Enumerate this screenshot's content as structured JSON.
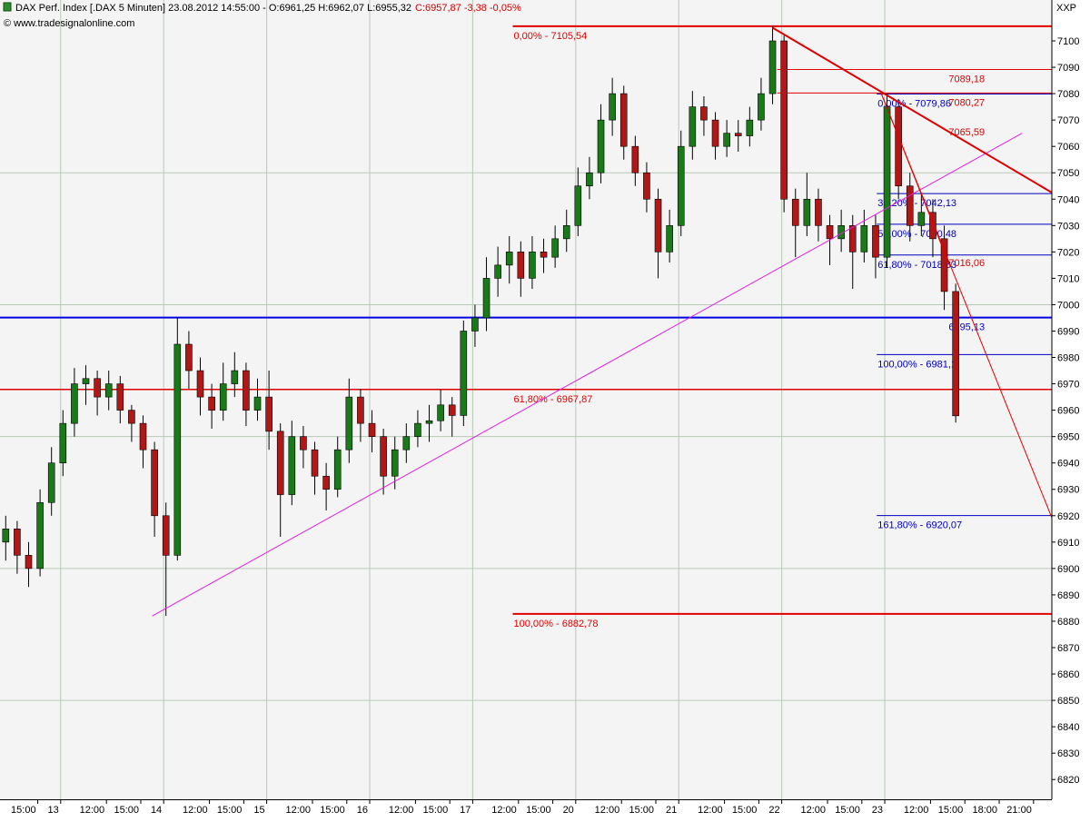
{
  "chart_data": {
    "type": "candlestick",
    "title": "DAX Perf. Index [.DAX  5 Minuten] 23.08.2012 14:55:00 - O:6961,25 H:6962,07 L:6955,32",
    "quote_change": "C:6957,87 -3,38 -0,05%",
    "source": "© www.tradesignalonline.com",
    "symbol_tag": "XXP",
    "up_color": "#1a7a1a",
    "down_color": "#b01818",
    "xlim": [
      0,
      91.9
    ],
    "ylim": [
      6812.5,
      7115.5
    ],
    "yticks": [
      6820,
      6830,
      6840,
      6850,
      6860,
      6870,
      6880,
      6890,
      6900,
      6910,
      6920,
      6930,
      6940,
      6950,
      6960,
      6970,
      6980,
      6990,
      7000,
      7010,
      7020,
      7030,
      7040,
      7050,
      7060,
      7070,
      7080,
      7090,
      7100
    ],
    "ygrid": [
      6850,
      6900,
      6950,
      7000,
      7050
    ],
    "xgrid": [
      5.3,
      14.3,
      23.3,
      32.3,
      41.3,
      50.3,
      59.3,
      68.3,
      77.3
    ],
    "xticks": [
      {
        "value": 3.3,
        "label": "15:00"
      },
      {
        "value": 5.3,
        "label": "13"
      },
      {
        "value": 9.3,
        "label": "12:00"
      },
      {
        "value": 12.3,
        "label": "15:00"
      },
      {
        "value": 14.3,
        "label": "14"
      },
      {
        "value": 18.3,
        "label": "12:00"
      },
      {
        "value": 21.3,
        "label": "15:00"
      },
      {
        "value": 23.3,
        "label": "15"
      },
      {
        "value": 27.3,
        "label": "12:00"
      },
      {
        "value": 30.3,
        "label": "15:00"
      },
      {
        "value": 32.3,
        "label": "16"
      },
      {
        "value": 36.3,
        "label": "12:00"
      },
      {
        "value": 39.3,
        "label": "15:00"
      },
      {
        "value": 41.3,
        "label": "17"
      },
      {
        "value": 45.3,
        "label": "12:00"
      },
      {
        "value": 48.3,
        "label": "15:00"
      },
      {
        "value": 50.3,
        "label": "20"
      },
      {
        "value": 54.3,
        "label": "12:00"
      },
      {
        "value": 57.3,
        "label": "15:00"
      },
      {
        "value": 59.3,
        "label": "21"
      },
      {
        "value": 63.3,
        "label": "12:00"
      },
      {
        "value": 66.3,
        "label": "15:00"
      },
      {
        "value": 68.3,
        "label": "22"
      },
      {
        "value": 72.3,
        "label": "12:00"
      },
      {
        "value": 75.3,
        "label": "15:00"
      },
      {
        "value": 77.3,
        "label": "23"
      },
      {
        "value": 81.3,
        "label": "12:00"
      },
      {
        "value": 84.3,
        "label": "15:00"
      },
      {
        "value": 87.3,
        "label": "18:00"
      },
      {
        "value": 90.3,
        "label": "21:00"
      }
    ],
    "x": [
      0.5,
      1.5,
      2.5,
      3.5,
      4.5,
      5.5,
      6.5,
      7.5,
      8.5,
      9.5,
      10.5,
      11.5,
      12.5,
      13.5,
      14.5,
      15.5,
      16.5,
      17.5,
      18.5,
      19.5,
      20.5,
      21.5,
      22.5,
      23.5,
      24.5,
      25.5,
      26.5,
      27.5,
      28.5,
      29.5,
      30.5,
      31.5,
      32.5,
      33.5,
      34.5,
      35.5,
      36.5,
      37.5,
      38.5,
      39.5,
      40.5,
      41.5,
      42.5,
      43.5,
      44.5,
      45.5,
      46.5,
      47.5,
      48.5,
      49.5,
      50.5,
      51.5,
      52.5,
      53.5,
      54.5,
      55.5,
      56.5,
      57.5,
      58.5,
      59.5,
      60.5,
      61.5,
      62.5,
      63.5,
      64.5,
      65.5,
      66.5,
      67.5,
      68.5,
      69.5,
      70.5,
      71.5,
      72.5,
      73.5,
      74.5,
      75.5,
      76.5,
      77.5,
      78.5,
      79.5,
      80.5,
      81.5,
      82.5,
      83.5
    ],
    "ohlc": [
      [
        6910,
        6920,
        6903,
        6915
      ],
      [
        6915,
        6918,
        6898,
        6905
      ],
      [
        6905,
        6910,
        6893,
        6900
      ],
      [
        6900,
        6930,
        6897,
        6925
      ],
      [
        6925,
        6946,
        6920,
        6940
      ],
      [
        6940,
        6960,
        6935,
        6955
      ],
      [
        6955,
        6976,
        6950,
        6970
      ],
      [
        6970,
        6977,
        6962,
        6972
      ],
      [
        6972,
        6975,
        6958,
        6965
      ],
      [
        6965,
        6975,
        6960,
        6970
      ],
      [
        6970,
        6973,
        6955,
        6960
      ],
      [
        6960,
        6962,
        6948,
        6955
      ],
      [
        6955,
        6958,
        6938,
        6945
      ],
      [
        6945,
        6948,
        6912,
        6920
      ],
      [
        6920,
        6925,
        6882,
        6905
      ],
      [
        6905,
        6995,
        6903,
        6985
      ],
      [
        6985,
        6990,
        6968,
        6975
      ],
      [
        6975,
        6980,
        6958,
        6965
      ],
      [
        6965,
        6970,
        6953,
        6960
      ],
      [
        6960,
        6978,
        6956,
        6970
      ],
      [
        6970,
        6982,
        6965,
        6975
      ],
      [
        6975,
        6978,
        6954,
        6960
      ],
      [
        6960,
        6972,
        6956,
        6965
      ],
      [
        6965,
        6975,
        6945,
        6952
      ],
      [
        6952,
        6955,
        6912,
        6928
      ],
      [
        6928,
        6956,
        6924,
        6950
      ],
      [
        6950,
        6954,
        6938,
        6945
      ],
      [
        6945,
        6948,
        6928,
        6935
      ],
      [
        6935,
        6940,
        6922,
        6930
      ],
      [
        6930,
        6950,
        6927,
        6945
      ],
      [
        6945,
        6972,
        6940,
        6965
      ],
      [
        6965,
        6968,
        6948,
        6955
      ],
      [
        6955,
        6960,
        6944,
        6950
      ],
      [
        6950,
        6953,
        6928,
        6935
      ],
      [
        6935,
        6950,
        6930,
        6945
      ],
      [
        6945,
        6955,
        6940,
        6950
      ],
      [
        6950,
        6960,
        6946,
        6955
      ],
      [
        6955,
        6962,
        6948,
        6956
      ],
      [
        6956,
        6968,
        6952,
        6962
      ],
      [
        6962,
        6965,
        6950,
        6958
      ],
      [
        6958,
        6994,
        6954,
        6990
      ],
      [
        6990,
        7000,
        6984,
        6995
      ],
      [
        6995,
        7018,
        6990,
        7010
      ],
      [
        7010,
        7022,
        7003,
        7015
      ],
      [
        7015,
        7026,
        7008,
        7020
      ],
      [
        7020,
        7024,
        7003,
        7010
      ],
      [
        7010,
        7026,
        7006,
        7020
      ],
      [
        7020,
        7025,
        7012,
        7018
      ],
      [
        7018,
        7030,
        7014,
        7025
      ],
      [
        7025,
        7036,
        7020,
        7030
      ],
      [
        7030,
        7052,
        7026,
        7045
      ],
      [
        7045,
        7056,
        7040,
        7050
      ],
      [
        7050,
        7076,
        7046,
        7070
      ],
      [
        7070,
        7086,
        7064,
        7080
      ],
      [
        7080,
        7083,
        7055,
        7060
      ],
      [
        7060,
        7064,
        7045,
        7050
      ],
      [
        7050,
        7054,
        7035,
        7040
      ],
      [
        7040,
        7044,
        7010,
        7020
      ],
      [
        7020,
        7036,
        7016,
        7030
      ],
      [
        7030,
        7066,
        7026,
        7060
      ],
      [
        7060,
        7081,
        7055,
        7075
      ],
      [
        7075,
        7079,
        7064,
        7070
      ],
      [
        7070,
        7073,
        7055,
        7060
      ],
      [
        7060,
        7070,
        7056,
        7065
      ],
      [
        7065,
        7070,
        7058,
        7064
      ],
      [
        7064,
        7075,
        7060,
        7070
      ],
      [
        7070,
        7086,
        7066,
        7080
      ],
      [
        7080,
        7105.5,
        7076,
        7100
      ],
      [
        7100,
        7102,
        7035,
        7040
      ],
      [
        7040,
        7044,
        7018,
        7030
      ],
      [
        7030,
        7050,
        7026,
        7040
      ],
      [
        7040,
        7044,
        7024,
        7030
      ],
      [
        7030,
        7034,
        7015,
        7025
      ],
      [
        7025,
        7036,
        7020,
        7030
      ],
      [
        7030,
        7034,
        7006,
        7020
      ],
      [
        7020,
        7036,
        7016,
        7030
      ],
      [
        7030,
        7034,
        7010,
        7018
      ],
      [
        7018,
        7080,
        7014,
        7075
      ],
      [
        7075,
        7078,
        7040,
        7045
      ],
      [
        7045,
        7050,
        7024,
        7030
      ],
      [
        7030,
        7042,
        7026,
        7035
      ],
      [
        7035,
        7040,
        7018,
        7025
      ],
      [
        7025,
        7030,
        6998,
        7005
      ],
      [
        7005,
        7008,
        6955.32,
        6957.87
      ]
    ],
    "levels": [
      {
        "value": 7105.54,
        "label": "0,00% - 7105,54",
        "color": "#e00000",
        "from": 44.8,
        "label_x": 44.8,
        "width": 2
      },
      {
        "value": 7089.18,
        "label": "7089,18",
        "color": "#e00000",
        "from": 67.9,
        "label_x": 82.8,
        "width": 1
      },
      {
        "value": 7080.27,
        "label": "7080,27",
        "color": "#e00000",
        "from": 67.9,
        "label_x": 82.8,
        "width": 1
      },
      {
        "value": 7079.86,
        "label": "0,00% - 7079,86",
        "color": "#0000c0",
        "from": 76.6,
        "label_x": 76.6,
        "width": 1
      },
      {
        "value": 7042.13,
        "label": "38,20% - 7042,13",
        "color": "#0000c0",
        "from": 76.6,
        "label_x": 76.6,
        "width": 1
      },
      {
        "value": 7030.48,
        "label": "50,00% - 7030,48",
        "color": "#0000c0",
        "from": 76.6,
        "label_x": 76.6,
        "width": 1
      },
      {
        "value": 7018.83,
        "label": "61,80% - 7018,83",
        "color": "#0000c0",
        "from": 76.6,
        "label_x": 76.6,
        "width": 1
      },
      {
        "value": 6995.13,
        "label": "6995,13",
        "color": "#0000e0",
        "from": 0,
        "label_x": 82.8,
        "width": 2
      },
      {
        "value": 6981.1,
        "label": "100,00% - 6981,1",
        "color": "#0000c0",
        "from": 76.6,
        "label_x": 76.6,
        "width": 1
      },
      {
        "value": 6967.87,
        "label": "61,80% - 6967,87",
        "color": "#e00000",
        "from": 0,
        "label_x": 44.8,
        "width": 1.5
      },
      {
        "value": 6920.07,
        "label": "161,80% - 6920,07",
        "color": "#0000c0",
        "from": 76.6,
        "label_x": 76.6,
        "width": 1
      },
      {
        "value": 6882.78,
        "label": "100,00% - 6882,78",
        "color": "#e00000",
        "from": 44.8,
        "label_x": 44.8,
        "width": 2
      }
    ],
    "annotations": [
      {
        "value": 7065.59,
        "label": "7065,59",
        "color": "#e00000",
        "x": 82.8
      },
      {
        "value": 7016.06,
        "label": "7016,06",
        "color": "#e00000",
        "x": 82.8
      }
    ],
    "trendlines": [
      {
        "color": "#e020e0",
        "width": 1,
        "x": [
          13.3,
          89.3
        ],
        "y": [
          6882,
          7065
        ]
      },
      {
        "color": "#e00000",
        "width": 2,
        "x": [
          67.5,
          91.9
        ],
        "y": [
          7105,
          7042.5
        ]
      },
      {
        "color": "#e00000",
        "width": 1,
        "x": [
          77,
          91.9
        ],
        "y": [
          7080,
          6919.2
        ]
      },
      {
        "color": "#e00000",
        "width": 1,
        "x": [
          77,
          82.9
        ],
        "y": [
          7080,
          7015.6
        ]
      }
    ]
  }
}
